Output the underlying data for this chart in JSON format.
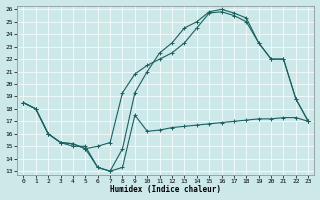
{
  "xlabel": "Humidex (Indice chaleur)",
  "background_color": "#cde8e8",
  "line_color": "#1a6060",
  "ylim": [
    13,
    26
  ],
  "xlim": [
    -0.5,
    23.5
  ],
  "yticks": [
    13,
    14,
    15,
    16,
    17,
    18,
    19,
    20,
    21,
    22,
    23,
    24,
    25,
    26
  ],
  "xticks": [
    0,
    1,
    2,
    3,
    4,
    5,
    6,
    7,
    8,
    9,
    10,
    11,
    12,
    13,
    14,
    15,
    16,
    17,
    18,
    19,
    20,
    21,
    22,
    23
  ],
  "line1_x": [
    0,
    1,
    2,
    3,
    4,
    5,
    6,
    7,
    8,
    9,
    10,
    11,
    12,
    13,
    14,
    15,
    16,
    17,
    18,
    19,
    20,
    21,
    22,
    23
  ],
  "line1_y": [
    18.5,
    18.0,
    16.0,
    15.3,
    15.0,
    15.0,
    13.3,
    13.0,
    13.3,
    17.5,
    16.2,
    16.3,
    16.5,
    16.6,
    16.7,
    16.8,
    16.9,
    17.0,
    17.1,
    17.2,
    17.2,
    17.3,
    17.3,
    17.0
  ],
  "line2_x": [
    0,
    1,
    2,
    3,
    4,
    5,
    6,
    7,
    8,
    9,
    10,
    11,
    12,
    13,
    14,
    15,
    16,
    17,
    18,
    19,
    20,
    21,
    22,
    23
  ],
  "line2_y": [
    18.5,
    18.0,
    16.0,
    15.3,
    15.2,
    14.8,
    15.0,
    15.3,
    19.3,
    20.8,
    21.5,
    22.0,
    22.5,
    23.3,
    24.5,
    25.7,
    25.8,
    25.5,
    25.0,
    23.3,
    22.0,
    22.0,
    18.8,
    17.0
  ],
  "line3_x": [
    0,
    1,
    2,
    3,
    4,
    5,
    6,
    7,
    8,
    9,
    10,
    11,
    12,
    13,
    14,
    15,
    16,
    17,
    18,
    19,
    20,
    21,
    22,
    23
  ],
  "line3_y": [
    18.5,
    18.0,
    16.0,
    15.3,
    15.2,
    14.8,
    13.3,
    13.0,
    14.8,
    19.3,
    21.0,
    22.5,
    23.3,
    24.5,
    25.0,
    25.8,
    26.0,
    25.7,
    25.3,
    23.3,
    22.0,
    22.0,
    18.8,
    17.0
  ]
}
